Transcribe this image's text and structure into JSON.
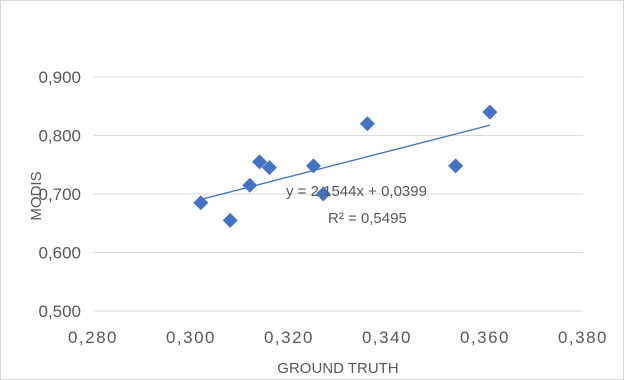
{
  "chart_data": {
    "type": "scatter",
    "title": "",
    "xlabel": "GROUND TRUTH",
    "ylabel": "MODIS",
    "xlim": [
      0.28,
      0.38
    ],
    "ylim": [
      0.5,
      0.9
    ],
    "x_ticks": [
      "0,280",
      "0,300",
      "0,320",
      "0,340",
      "0,360",
      "0,380"
    ],
    "y_ticks": [
      "0,500",
      "0,600",
      "0,700",
      "0,800",
      "0,900"
    ],
    "grid": "horizontal",
    "series": [
      {
        "x": [
          0.302,
          0.308,
          0.312,
          0.314,
          0.316,
          0.325,
          0.327,
          0.336,
          0.354,
          0.361
        ],
        "y": [
          0.685,
          0.655,
          0.715,
          0.755,
          0.745,
          0.748,
          0.7,
          0.82,
          0.748,
          0.84
        ],
        "marker": "diamond",
        "color": "#4472c4"
      }
    ],
    "trendline": {
      "type": "linear",
      "slope": 2.1544,
      "intercept": 0.0399,
      "x_range": [
        0.302,
        0.361
      ],
      "equation_label": "y = 2,1544x + 0,0399",
      "r2_label": "R² = 0,5495",
      "color": "#4472c4"
    }
  }
}
